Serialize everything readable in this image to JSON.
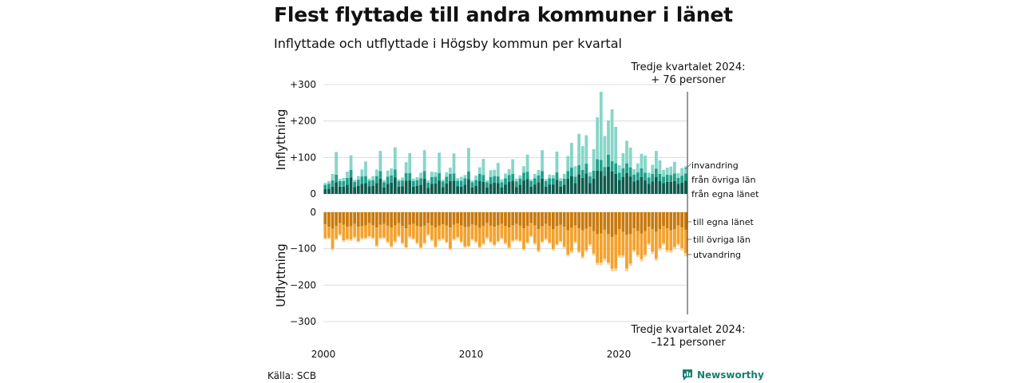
{
  "title": "Flest flyttade till andra kommuner i länet",
  "subtitle": "Inflyttade och utflyttade i Högsby kommun per kvartal",
  "source": "Källa: SCB",
  "brand": "Newsworthy",
  "colors": {
    "in_own": "#0d5b4d",
    "in_other": "#1fa08a",
    "in_immig": "#86d6c8",
    "out_own": "#c9790c",
    "out_other": "#f3a22f",
    "out_emig": "#fad39a",
    "brand": "#15806f",
    "grid": "#dcdcdc"
  },
  "chart_data": {
    "type": "bar",
    "x_label_in": "Inflyttning",
    "x_label_out": "Utflyttning",
    "x_ticks": [
      "2000",
      "2010",
      "2020"
    ],
    "in_y_ticks": [
      "+300",
      "+200",
      "+100",
      "0"
    ],
    "out_y_ticks": [
      "0",
      "−100",
      "−200",
      "−300"
    ],
    "ylim_in": [
      0,
      300
    ],
    "ylim_out": [
      -300,
      0
    ],
    "period": {
      "start": "2000Q1",
      "end": "2024Q3"
    },
    "series_in": [
      {
        "name": "från egna länet",
        "values": [
          13,
          14,
          20,
          32,
          20,
          20,
          25,
          45,
          19,
          22,
          28,
          30,
          21,
          22,
          30,
          42,
          18,
          28,
          31,
          45,
          20,
          21,
          36,
          37,
          20,
          22,
          25,
          42,
          17,
          28,
          29,
          37,
          19,
          29,
          35,
          36,
          21,
          20,
          25,
          41,
          18,
          22,
          35,
          33,
          18,
          28,
          31,
          30,
          18,
          26,
          33,
          36,
          19,
          25,
          37,
          41,
          20,
          26,
          32,
          42,
          20,
          26,
          26,
          39,
          20,
          25,
          42,
          49,
          30,
          54,
          44,
          56,
          30,
          42,
          64,
          63,
          50,
          75,
          62,
          55,
          38,
          46,
          57,
          48,
          34,
          38,
          46,
          37,
          28,
          34,
          46,
          35,
          30,
          33,
          33,
          35,
          28,
          31,
          36
        ]
      },
      {
        "name": "från övriga län",
        "values": [
          12,
          14,
          17,
          21,
          15,
          15,
          19,
          21,
          14,
          17,
          20,
          19,
          15,
          16,
          19,
          21,
          14,
          19,
          20,
          22,
          15,
          16,
          21,
          20,
          15,
          16,
          18,
          21,
          14,
          18,
          18,
          20,
          15,
          18,
          20,
          20,
          15,
          16,
          18,
          21,
          14,
          16,
          20,
          19,
          14,
          18,
          18,
          18,
          14,
          17,
          19,
          19,
          15,
          17,
          21,
          20,
          15,
          17,
          19,
          21,
          15,
          17,
          17,
          20,
          15,
          17,
          21,
          23,
          17,
          25,
          22,
          27,
          18,
          22,
          31,
          30,
          24,
          33,
          28,
          29,
          20,
          24,
          27,
          25,
          19,
          21,
          24,
          21,
          17,
          21,
          23,
          20,
          17,
          20,
          19,
          21,
          16,
          19,
          20
        ]
      },
      {
        "name": "invandring",
        "values": [
          5,
          7,
          18,
          62,
          6,
          9,
          17,
          40,
          6,
          10,
          19,
          40,
          6,
          11,
          18,
          55,
          6,
          17,
          19,
          61,
          5,
          8,
          30,
          55,
          7,
          8,
          15,
          57,
          7,
          15,
          13,
          56,
          5,
          12,
          17,
          55,
          7,
          11,
          9,
          64,
          5,
          12,
          18,
          44,
          5,
          19,
          17,
          37,
          8,
          13,
          16,
          40,
          8,
          9,
          18,
          47,
          5,
          12,
          15,
          57,
          6,
          10,
          9,
          57,
          8,
          13,
          41,
          68,
          29,
          86,
          65,
          78,
          12,
          59,
          115,
          187,
          85,
          94,
          142,
          100,
          21,
          42,
          62,
          54,
          15,
          25,
          40,
          47,
          13,
          25,
          49,
          37,
          19,
          19,
          23,
          32,
          13,
          21,
          20
        ]
      }
    ],
    "series_out": [
      {
        "name": "till egna länet",
        "values": [
          -33,
          -40,
          -45,
          -38,
          -30,
          -34,
          -40,
          -39,
          -32,
          -40,
          -38,
          -36,
          -30,
          -35,
          -42,
          -34,
          -32,
          -37,
          -42,
          -36,
          -30,
          -38,
          -44,
          -34,
          -32,
          -38,
          -40,
          -37,
          -30,
          -36,
          -42,
          -37,
          -33,
          -37,
          -42,
          -34,
          -31,
          -36,
          -41,
          -40,
          -33,
          -36,
          -43,
          -38,
          -30,
          -37,
          -40,
          -36,
          -32,
          -38,
          -42,
          -36,
          -32,
          -37,
          -44,
          -38,
          -30,
          -36,
          -46,
          -39,
          -32,
          -38,
          -46,
          -38,
          -34,
          -40,
          -50,
          -43,
          -36,
          -44,
          -50,
          -45,
          -40,
          -52,
          -60,
          -58,
          -48,
          -60,
          -68,
          -62,
          -46,
          -54,
          -62,
          -60,
          -44,
          -52,
          -58,
          -52,
          -40,
          -46,
          -54,
          -46,
          -38,
          -44,
          -50,
          -46,
          -36,
          -42,
          -48
        ]
      },
      {
        "name": "till övriga län",
        "values": [
          -38,
          -30,
          -55,
          -35,
          -31,
          -43,
          -33,
          -36,
          -36,
          -39,
          -33,
          -34,
          -36,
          -35,
          -49,
          -36,
          -37,
          -43,
          -51,
          -43,
          -35,
          -46,
          -52,
          -33,
          -40,
          -46,
          -57,
          -47,
          -31,
          -40,
          -52,
          -38,
          -39,
          -44,
          -58,
          -40,
          -37,
          -44,
          -53,
          -52,
          -41,
          -44,
          -52,
          -48,
          -39,
          -43,
          -49,
          -43,
          -38,
          -46,
          -55,
          -42,
          -43,
          -41,
          -57,
          -45,
          -35,
          -49,
          -59,
          -41,
          -41,
          -45,
          -55,
          -50,
          -45,
          -54,
          -66,
          -64,
          -44,
          -63,
          -72,
          -59,
          -48,
          -61,
          -79,
          -80,
          -79,
          -78,
          -87,
          -92,
          -73,
          -65,
          -93,
          -81,
          -60,
          -65,
          -70,
          -64,
          -46,
          -63,
          -73,
          -53,
          -47,
          -60,
          -55,
          -50,
          -51,
          -57,
          -64
        ]
      },
      {
        "name": "utvandring",
        "values": [
          -4,
          -4,
          -5,
          -4,
          -4,
          -5,
          -4,
          -4,
          -4,
          -4,
          -4,
          -4,
          -5,
          -4,
          -4,
          -4,
          -4,
          -5,
          -4,
          -4,
          -4,
          -4,
          -4,
          -5,
          -4,
          -4,
          -4,
          -4,
          -4,
          -4,
          -4,
          -4,
          -4,
          -4,
          -4,
          -4,
          -4,
          -4,
          -4,
          -4,
          -4,
          -4,
          -4,
          -4,
          -4,
          -4,
          -4,
          -4,
          -4,
          -4,
          -4,
          -4,
          -4,
          -4,
          -4,
          -4,
          -4,
          -4,
          -5,
          -4,
          -4,
          -4,
          -4,
          -4,
          -4,
          -5,
          -5,
          -5,
          -5,
          -5,
          -5,
          -5,
          -5,
          -6,
          -6,
          -7,
          -6,
          -6,
          -7,
          -7,
          -6,
          -6,
          -7,
          -6,
          -6,
          -6,
          -7,
          -6,
          -5,
          -6,
          -6,
          -6,
          -5,
          -6,
          -6,
          -6,
          -5,
          -6,
          -9
        ]
      }
    ],
    "labels_in": [
      "invandring",
      "från övriga län",
      "från egna länet"
    ],
    "labels_out": [
      "till egna länet",
      "till övriga län",
      "utvandring"
    ],
    "annotation_top": [
      "Tredje kvartalet 2024:",
      "+ 76 personer"
    ],
    "annotation_bottom": [
      "Tredje kvartalet 2024:",
      "–121 personer"
    ],
    "grid": true,
    "legend": "right"
  }
}
